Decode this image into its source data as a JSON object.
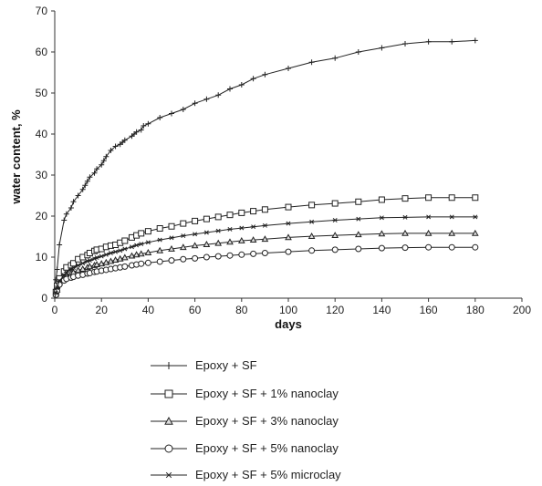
{
  "chart_data": {
    "type": "line",
    "title": "",
    "xlabel": "days",
    "ylabel": "water content, %",
    "xlim": [
      0,
      200
    ],
    "ylim": [
      0,
      70
    ],
    "xticks": [
      0,
      20,
      40,
      60,
      80,
      100,
      120,
      140,
      160,
      180,
      200
    ],
    "yticks": [
      0,
      10,
      20,
      30,
      40,
      50,
      60,
      70
    ],
    "grid": false,
    "legend_position": "bottom",
    "series": [
      {
        "name": "Epoxy + SF",
        "marker": "plus",
        "color": "#222222",
        "x": [
          0,
          0.5,
          1,
          2,
          4,
          5,
          7,
          8,
          10,
          12,
          13,
          14,
          15,
          17,
          18,
          20,
          21,
          22,
          24,
          26,
          28,
          29,
          30,
          33,
          34,
          35,
          37,
          38,
          40,
          45,
          50,
          55,
          60,
          65,
          70,
          75,
          80,
          85,
          90,
          100,
          110,
          120,
          130,
          140,
          150,
          160,
          170,
          180
        ],
        "y": [
          0,
          4.5,
          7,
          13,
          19,
          20.5,
          22,
          23.5,
          25,
          26.5,
          27.5,
          28.5,
          29.5,
          30.5,
          31.5,
          32.5,
          33.5,
          34.5,
          36,
          37,
          37.5,
          38,
          38.5,
          39.5,
          40,
          40.5,
          41,
          42,
          42.5,
          44,
          45,
          46,
          47.5,
          48.5,
          49.5,
          51,
          52,
          53.5,
          54.5,
          56,
          57.5,
          58.5,
          60,
          61,
          62,
          62.5,
          62.5,
          62.8
        ]
      },
      {
        "name": "Epoxy + SF + 1% nanoclay",
        "marker": "square",
        "color": "#222222",
        "x": [
          0,
          0.5,
          1,
          2,
          4,
          5,
          7,
          8,
          10,
          12,
          14,
          15,
          17,
          18,
          20,
          22,
          24,
          26,
          28,
          30,
          33,
          35,
          37,
          40,
          45,
          50,
          55,
          60,
          65,
          70,
          75,
          80,
          85,
          90,
          100,
          110,
          120,
          130,
          140,
          150,
          160,
          170,
          180
        ],
        "y": [
          0,
          1.5,
          3,
          4.8,
          6.5,
          7.5,
          8,
          8.5,
          9.5,
          10,
          10.5,
          11,
          11.5,
          11.8,
          12,
          12.5,
          12.8,
          13,
          13.5,
          14,
          14.8,
          15.3,
          15.8,
          16.3,
          17,
          17.5,
          18.2,
          18.8,
          19.3,
          19.8,
          20.3,
          20.8,
          21.2,
          21.6,
          22.2,
          22.7,
          23.1,
          23.5,
          24,
          24.3,
          24.5,
          24.5,
          24.5
        ]
      },
      {
        "name": "Epoxy + SF + 3% nanoclay",
        "marker": "triangle",
        "color": "#222222",
        "x": [
          0,
          0.5,
          1,
          2,
          4,
          5,
          7,
          8,
          10,
          12,
          14,
          15,
          17,
          18,
          20,
          22,
          24,
          26,
          28,
          30,
          33,
          35,
          37,
          40,
          45,
          50,
          55,
          60,
          65,
          70,
          75,
          80,
          85,
          90,
          100,
          110,
          120,
          130,
          140,
          150,
          160,
          170,
          180
        ],
        "y": [
          0,
          1,
          2,
          3.8,
          5,
          5.5,
          6,
          6.3,
          6.8,
          7.1,
          7.5,
          7.7,
          8,
          8.2,
          8.4,
          8.7,
          9,
          9.3,
          9.6,
          9.9,
          10.3,
          10.6,
          10.8,
          11.1,
          11.6,
          12,
          12.4,
          12.8,
          13.1,
          13.4,
          13.7,
          14,
          14.2,
          14.4,
          14.8,
          15.1,
          15.3,
          15.5,
          15.7,
          15.8,
          15.8,
          15.8,
          15.8
        ]
      },
      {
        "name": "Epoxy + SF + 5% nanoclay",
        "marker": "circle",
        "color": "#222222",
        "x": [
          0,
          0.5,
          1,
          2,
          4,
          5,
          7,
          8,
          10,
          12,
          14,
          15,
          17,
          18,
          20,
          22,
          24,
          26,
          28,
          30,
          33,
          35,
          37,
          40,
          45,
          50,
          55,
          60,
          65,
          70,
          75,
          80,
          85,
          90,
          100,
          110,
          120,
          130,
          140,
          150,
          160,
          170,
          180
        ],
        "y": [
          0,
          0.8,
          1.8,
          3.3,
          4.3,
          4.7,
          5,
          5.2,
          5.5,
          5.7,
          6,
          6.1,
          6.4,
          6.5,
          6.7,
          6.9,
          7.1,
          7.3,
          7.5,
          7.7,
          8,
          8.2,
          8.4,
          8.6,
          8.9,
          9.2,
          9.5,
          9.7,
          10,
          10.2,
          10.4,
          10.6,
          10.8,
          11,
          11.3,
          11.6,
          11.8,
          12,
          12.2,
          12.3,
          12.4,
          12.4,
          12.4
        ]
      },
      {
        "name": "Epoxy + SF + 5% microclay",
        "marker": "asterisk",
        "color": "#222222",
        "x": [
          0,
          0.5,
          1,
          2,
          4,
          5,
          7,
          8,
          10,
          12,
          14,
          15,
          17,
          18,
          20,
          22,
          24,
          26,
          28,
          30,
          33,
          35,
          37,
          40,
          45,
          50,
          55,
          60,
          65,
          70,
          75,
          80,
          85,
          90,
          100,
          110,
          120,
          130,
          140,
          150,
          160,
          170,
          180
        ],
        "y": [
          0,
          1.3,
          2.5,
          4.2,
          5.6,
          6.3,
          7,
          7.4,
          8,
          8.5,
          9,
          9.2,
          9.6,
          9.9,
          10.2,
          10.6,
          11,
          11.3,
          11.6,
          12,
          12.5,
          12.9,
          13.2,
          13.6,
          14.2,
          14.7,
          15.2,
          15.6,
          16,
          16.4,
          16.8,
          17.1,
          17.4,
          17.7,
          18.2,
          18.6,
          19,
          19.3,
          19.6,
          19.7,
          19.8,
          19.8,
          19.8
        ]
      }
    ]
  }
}
